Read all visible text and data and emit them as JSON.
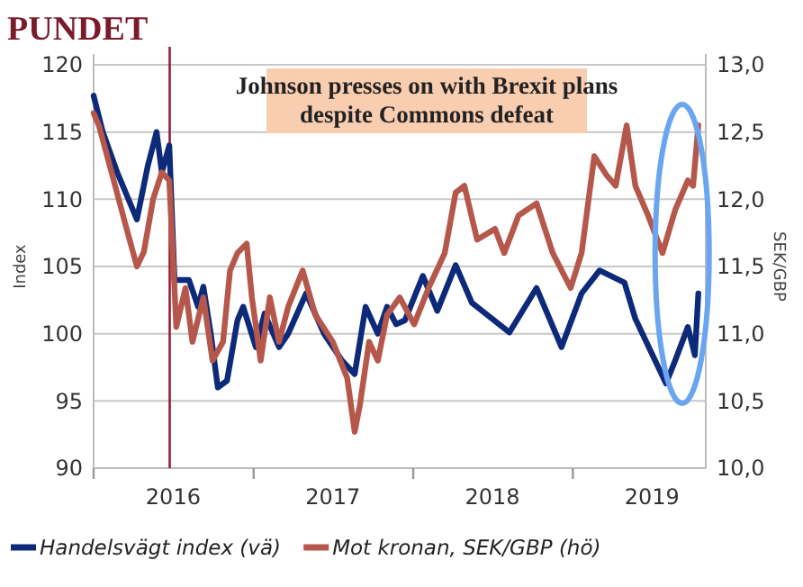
{
  "chart_data": {
    "type": "line",
    "title": "PUNDET",
    "ylabel": "Index",
    "y2label": "SEK/GBP",
    "annotations": [
      "Johnson presses on with Brexit plans despite Commons defeat"
    ],
    "xlim": [
      "2016-01-01",
      "2019-11-01"
    ],
    "xticks": [
      {
        "value": "2016-01-01",
        "label": null
      },
      {
        "value": "2016-07-01",
        "label": "2016"
      },
      {
        "value": "2017-01-01",
        "label": null
      },
      {
        "value": "2017-07-01",
        "label": "2017"
      },
      {
        "value": "2018-01-01",
        "label": null
      },
      {
        "value": "2018-07-01",
        "label": "2018"
      },
      {
        "value": "2019-01-01",
        "label": null
      },
      {
        "value": "2019-07-01",
        "label": "2019"
      }
    ],
    "ylim": [
      90,
      120
    ],
    "yticks": [
      90,
      95,
      100,
      105,
      110,
      115,
      120
    ],
    "y2lim": [
      10,
      13
    ],
    "y2ticks": [
      {
        "value": 10,
        "label": "10,0"
      },
      {
        "value": 10.5,
        "label": "10,5"
      },
      {
        "value": 11,
        "label": "11,0"
      },
      {
        "value": 11.5,
        "label": "11,5"
      },
      {
        "value": 12,
        "label": "12,0"
      },
      {
        "value": 12.5,
        "label": "12,5"
      },
      {
        "value": 13,
        "label": "13,0"
      }
    ],
    "grid": "y",
    "legend": "bottom",
    "line_style": "solid",
    "marker": "none",
    "ref_lines": [
      {
        "axis": "x",
        "value": "2016-06-23",
        "label": null,
        "color": "#9b1c3a"
      }
    ],
    "series": [
      {
        "name": "Handelsvägt index (vä)",
        "color": "#0d2a7a",
        "x": [
          "2016-01-01",
          "2016-01-22",
          "2016-02-24",
          "2016-04-09",
          "2016-05-04",
          "2016-05-24",
          "2016-06-05",
          "2016-06-22",
          "2016-07-04",
          "2016-08-06",
          "2016-08-27",
          "2016-09-08",
          "2016-09-25",
          "2016-10-11",
          "2016-11-01",
          "2016-11-25",
          "2016-12-08",
          "2017-01-06",
          "2017-01-26",
          "2017-02-28",
          "2017-03-21",
          "2017-05-01",
          "2017-06-11",
          "2017-07-22",
          "2017-08-20",
          "2017-09-14",
          "2017-10-12",
          "2017-11-02",
          "2017-11-23",
          "2017-12-13",
          "2018-01-23",
          "2018-02-25",
          "2018-04-08",
          "2018-05-15",
          "2018-08-09",
          "2018-10-10",
          "2018-12-06",
          "2019-01-21",
          "2019-03-03",
          "2019-04-29",
          "2019-05-24",
          "2019-08-02",
          "2019-08-23",
          "2019-09-21",
          "2019-10-07",
          "2019-10-15"
        ],
        "values": [
          117.7,
          115,
          112,
          108.5,
          112.5,
          115,
          112,
          114,
          104,
          104,
          102,
          103.5,
          100,
          96,
          96.5,
          101,
          102,
          99,
          101.5,
          99,
          100,
          103,
          100,
          98,
          97,
          102,
          100,
          102,
          100.7,
          101,
          104.3,
          101.7,
          105.1,
          102.3,
          100.1,
          103.4,
          99,
          103,
          104.7,
          103.8,
          101.1,
          96.3,
          98,
          100.5,
          98.4,
          103
        ]
      },
      {
        "name": "Mot kronan, SEK/GBP (hö)",
        "color": "#b5574a",
        "axis": "y2",
        "x": [
          "2016-01-01",
          "2016-01-13",
          "2016-02-16",
          "2016-03-14",
          "2016-04-09",
          "2016-04-25",
          "2016-05-16",
          "2016-06-05",
          "2016-06-22",
          "2016-07-04",
          "2016-07-08",
          "2016-07-29",
          "2016-08-14",
          "2016-09-08",
          "2016-09-29",
          "2016-10-23",
          "2016-11-08",
          "2016-11-25",
          "2016-12-16",
          "2016-12-28",
          "2017-01-17",
          "2017-02-07",
          "2017-02-28",
          "2017-03-21",
          "2017-04-23",
          "2017-05-22",
          "2017-07-01",
          "2017-08-03",
          "2017-08-20",
          "2017-09-01",
          "2017-09-22",
          "2017-10-12",
          "2017-11-02",
          "2017-12-01",
          "2018-01-03",
          "2018-02-05",
          "2018-03-14",
          "2018-04-08",
          "2018-04-28",
          "2018-05-27",
          "2018-07-07",
          "2018-07-28",
          "2018-08-30",
          "2018-10-10",
          "2018-11-16",
          "2018-12-27",
          "2019-01-21",
          "2019-02-19",
          "2019-03-19",
          "2019-04-09",
          "2019-05-04",
          "2019-05-24",
          "2019-06-22",
          "2019-07-25",
          "2019-08-23",
          "2019-09-21",
          "2019-10-03",
          "2019-10-15"
        ],
        "values": [
          12.64,
          12.55,
          12.14,
          11.81,
          11.5,
          11.61,
          12,
          12.2,
          12.14,
          11.34,
          11.05,
          11.34,
          10.94,
          11.27,
          10.8,
          10.94,
          11.47,
          11.6,
          11.67,
          11.27,
          10.8,
          11.27,
          10.94,
          11.2,
          11.47,
          11.14,
          10.94,
          10.67,
          10.27,
          10.47,
          10.94,
          10.8,
          11.14,
          11.27,
          11.07,
          11.34,
          11.6,
          12.05,
          12.1,
          11.7,
          11.78,
          11.6,
          11.88,
          11.97,
          11.6,
          11.34,
          11.6,
          12.32,
          12.18,
          12.1,
          12.55,
          12.1,
          11.88,
          11.6,
          11.92,
          12.14,
          12.1,
          12.55
        ]
      }
    ]
  }
}
